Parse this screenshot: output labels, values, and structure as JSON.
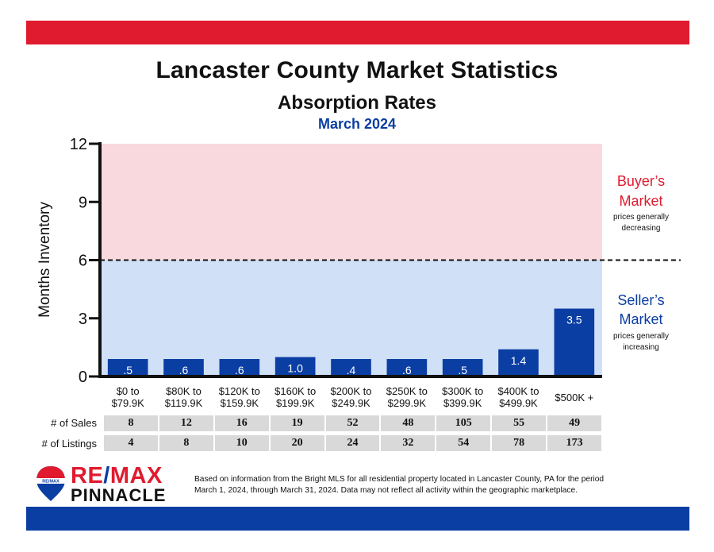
{
  "header": {
    "title": "Lancaster County Market Statistics",
    "subtitle": "Absorption Rates",
    "period": "March 2024"
  },
  "chart_data": {
    "type": "bar",
    "title": "Absorption Rates",
    "ylabel": "Months Inventory",
    "xlabel": "",
    "ylim": [
      0,
      12
    ],
    "yticks": [
      0,
      3,
      6,
      9,
      12
    ],
    "categories": [
      [
        "$0 to",
        "$79.9K"
      ],
      [
        "$80K to",
        "$119.9K"
      ],
      [
        "$120K to",
        "$159.9K"
      ],
      [
        "$160K to",
        "$199.9K"
      ],
      [
        "$200K to",
        "$249.9K"
      ],
      [
        "$250K to",
        "$299.9K"
      ],
      [
        "$300K to",
        "$399.9K"
      ],
      [
        "$400K to",
        "$499.9K"
      ],
      [
        "$500K +"
      ]
    ],
    "values": [
      0.5,
      0.6,
      0.6,
      1.0,
      0.4,
      0.6,
      0.5,
      1.4,
      3.5
    ],
    "value_labels": [
      ".5",
      ".6",
      ".6",
      "1.0",
      ".4",
      ".6",
      ".5",
      "1.4",
      "3.5"
    ],
    "bar_min_display": 0.9,
    "threshold": 6,
    "zones": {
      "buyer": {
        "range": [
          6,
          12
        ],
        "title_line1": "Buyer’s",
        "title_line2": "Market",
        "note_line1": "prices generally",
        "note_line2": "decreasing",
        "color": "#e01b2f",
        "fill": "#f9d9dd"
      },
      "seller": {
        "range": [
          0,
          6
        ],
        "title_line1": "Seller’s",
        "title_line2": "Market",
        "note_line1": "prices generally",
        "note_line2": "increasing",
        "color": "#0b3ea3",
        "fill": "#cfe0f7"
      }
    },
    "bar_color": "#0b3ea3",
    "grid": false,
    "legend": "none"
  },
  "stats": {
    "sales_label": "# of Sales",
    "listings_label": "# of Listings",
    "sales": [
      "8",
      "12",
      "16",
      "19",
      "52",
      "48",
      "105",
      "55",
      "49"
    ],
    "listings": [
      "4",
      "8",
      "10",
      "20",
      "24",
      "32",
      "54",
      "78",
      "173"
    ],
    "row_color": "#d9d9d9"
  },
  "brand": {
    "name_part1": "RE",
    "name_slash": "/",
    "name_part2": "MAX",
    "name_sub": "PINNACLE",
    "balloon_text": "RE/MAX"
  },
  "footnote": {
    "line1": "Based on information from the Bright MLS for all residential property located in Lancaster County, PA for the period",
    "line2": "March 1, 2024, through March 31, 2024.  Data may not reflect all activity within the geographic marketplace."
  },
  "colors": {
    "top_bar": "#e01b2f",
    "bottom_bar": "#0b3ea3"
  }
}
